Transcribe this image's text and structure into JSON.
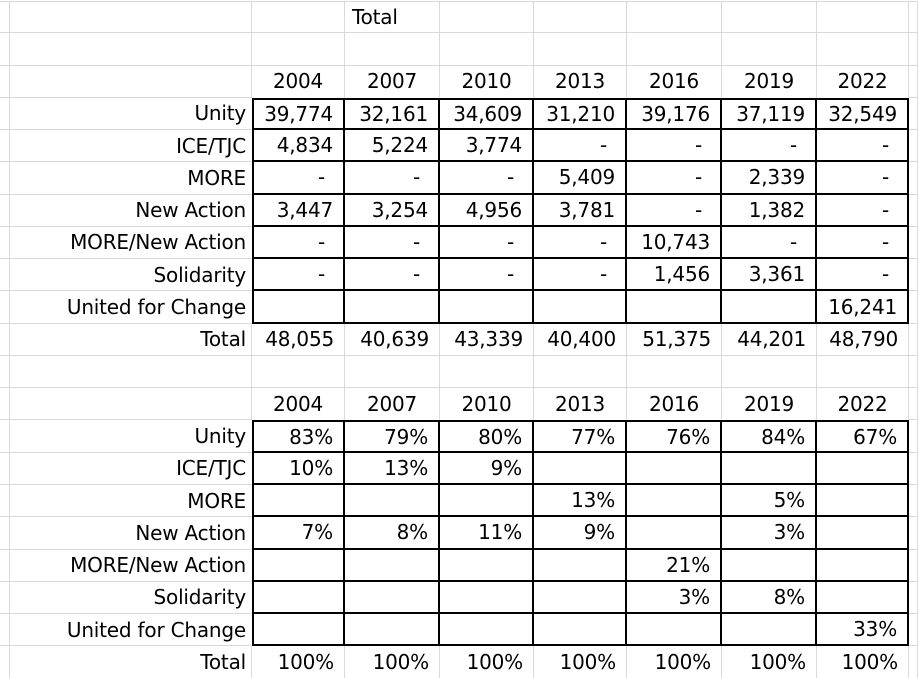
{
  "colors": {
    "background": "#ffffff",
    "gridline": "#d9d9d9",
    "cell_border": "#000000",
    "text": "#000000"
  },
  "spreadsheet": {
    "top_label": "Total",
    "years": [
      "2004",
      "2007",
      "2010",
      "2013",
      "2016",
      "2019",
      "2022"
    ],
    "counts_table": {
      "rows": [
        {
          "label": "Unity",
          "values": [
            "39,774",
            "32,161",
            "34,609",
            "31,210",
            "39,176",
            "37,119",
            "32,549"
          ]
        },
        {
          "label": "ICE/TJC",
          "values": [
            "4,834",
            "5,224",
            "3,774",
            "-",
            "-",
            "-",
            "-"
          ]
        },
        {
          "label": "MORE",
          "values": [
            "-",
            "-",
            "-",
            "5,409",
            "-",
            "2,339",
            "-"
          ]
        },
        {
          "label": "New Action",
          "values": [
            "3,447",
            "3,254",
            "4,956",
            "3,781",
            "-",
            "1,382",
            "-"
          ]
        },
        {
          "label": "MORE/New Action",
          "values": [
            "-",
            "-",
            "-",
            "-",
            "10,743",
            "-",
            "-"
          ]
        },
        {
          "label": "Solidarity",
          "values": [
            "-",
            "-",
            "-",
            "-",
            "1,456",
            "3,361",
            "-"
          ]
        },
        {
          "label": "United for Change",
          "values": [
            "",
            "",
            "",
            "",
            "",
            "",
            "16,241"
          ]
        }
      ],
      "total_row": {
        "label": "Total",
        "values": [
          "48,055",
          "40,639",
          "43,339",
          "40,400",
          "51,375",
          "44,201",
          "48,790"
        ]
      }
    },
    "percent_table": {
      "rows": [
        {
          "label": "Unity",
          "values": [
            "83%",
            "79%",
            "80%",
            "77%",
            "76%",
            "84%",
            "67%"
          ]
        },
        {
          "label": "ICE/TJC",
          "values": [
            "10%",
            "13%",
            "9%",
            "",
            "",
            "",
            ""
          ]
        },
        {
          "label": "MORE",
          "values": [
            "",
            "",
            "",
            "13%",
            "",
            "5%",
            ""
          ]
        },
        {
          "label": "New Action",
          "values": [
            "7%",
            "8%",
            "11%",
            "9%",
            "",
            "3%",
            ""
          ]
        },
        {
          "label": "MORE/New Action",
          "values": [
            "",
            "",
            "",
            "",
            "21%",
            "",
            ""
          ]
        },
        {
          "label": "Solidarity",
          "values": [
            "",
            "",
            "",
            "",
            "3%",
            "8%",
            ""
          ]
        },
        {
          "label": "United for Change",
          "values": [
            "",
            "",
            "",
            "",
            "",
            "",
            "33%"
          ]
        }
      ],
      "total_row": {
        "label": "Total",
        "values": [
          "100%",
          "100%",
          "100%",
          "100%",
          "100%",
          "100%",
          "100%"
        ]
      }
    }
  }
}
